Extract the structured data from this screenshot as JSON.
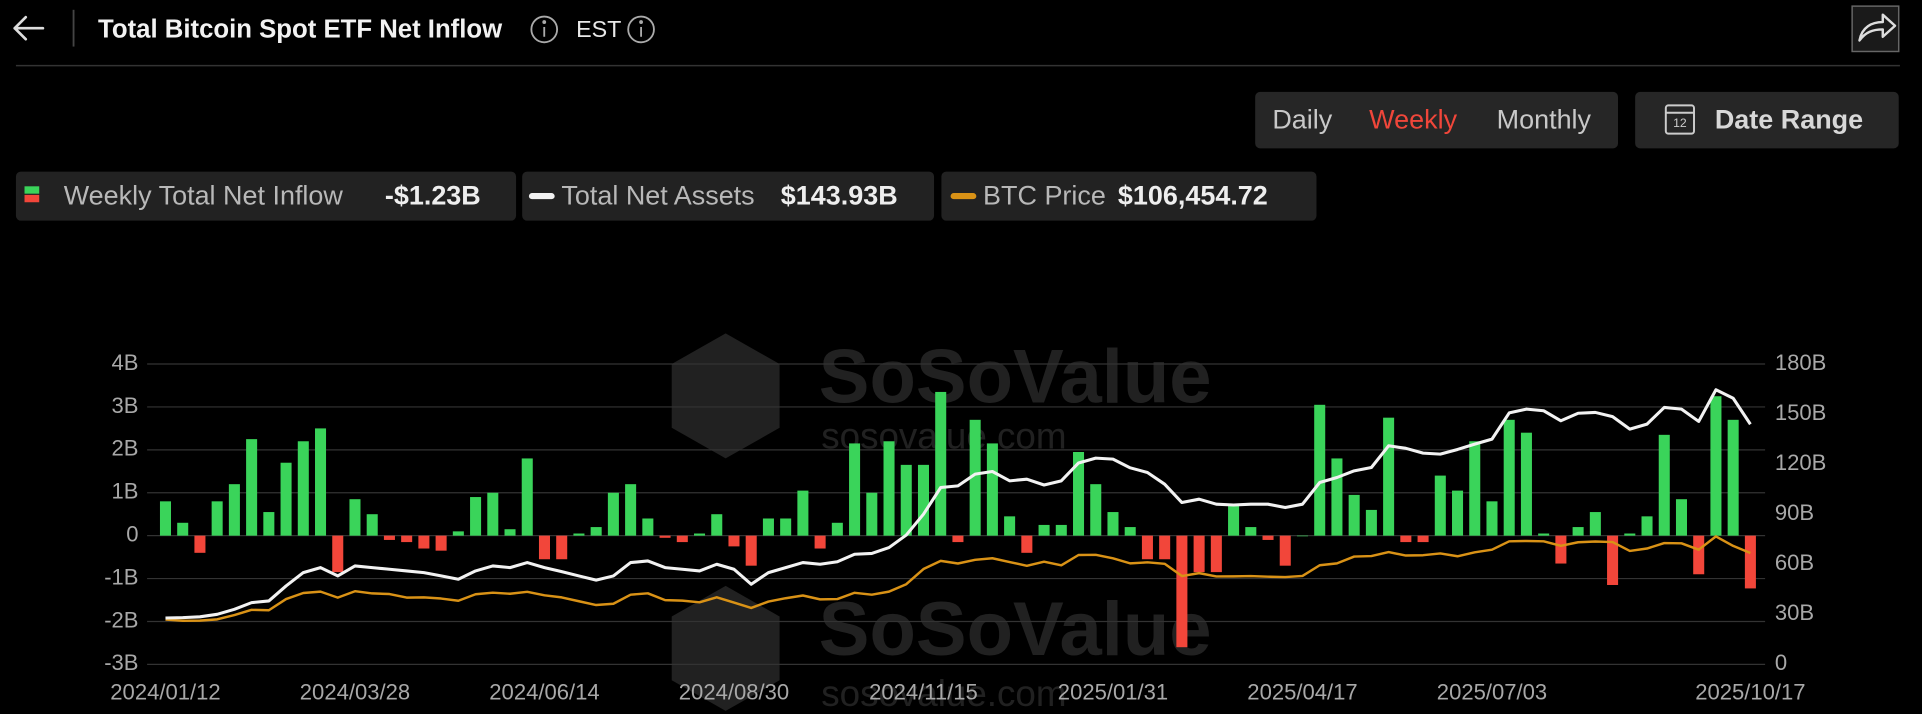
{
  "header": {
    "title": "Total Bitcoin Spot ETF Net Inflow",
    "timezone": "EST"
  },
  "controls": {
    "tabs": [
      "Daily",
      "Weekly",
      "Monthly"
    ],
    "active_tab": 1,
    "date_range": "Date Range",
    "calendar_day": "12"
  },
  "watermark": {
    "brand": "SoSoValue",
    "url": "sosovalue.com"
  },
  "chart_data": {
    "type": "bar",
    "categories": [
      "2024/01/12",
      null,
      null,
      null,
      null,
      null,
      null,
      null,
      null,
      null,
      null,
      "2024/03/28",
      null,
      null,
      null,
      null,
      null,
      null,
      null,
      null,
      null,
      null,
      "2024/06/14",
      null,
      null,
      null,
      null,
      null,
      null,
      null,
      null,
      null,
      null,
      "2024/08/30",
      null,
      null,
      null,
      null,
      null,
      null,
      null,
      null,
      null,
      null,
      "2024/11/15",
      null,
      null,
      null,
      null,
      null,
      null,
      null,
      null,
      null,
      null,
      "2025/01/31",
      null,
      null,
      null,
      null,
      null,
      null,
      null,
      null,
      null,
      null,
      "2025/04/17",
      null,
      null,
      null,
      null,
      null,
      null,
      null,
      null,
      null,
      null,
      "2025/07/03",
      null,
      null,
      null,
      null,
      null,
      null,
      null,
      null,
      null,
      null,
      null,
      null,
      null,
      null,
      "2025/10/17"
    ],
    "series": [
      {
        "name": "Weekly Total Net Inflow",
        "type": "bar",
        "axis": "y",
        "color": "#3ad45a",
        "negative_color": "#f2463a",
        "latest_label": "-$1.23B",
        "values": [
          0.8,
          0.3,
          -0.4,
          0.8,
          1.2,
          2.25,
          0.55,
          1.7,
          2.2,
          2.5,
          -0.85,
          0.85,
          0.5,
          -0.1,
          -0.15,
          -0.3,
          -0.35,
          0.1,
          0.9,
          1.0,
          0.15,
          1.8,
          -0.55,
          -0.55,
          0.05,
          0.2,
          1.0,
          1.2,
          0.4,
          -0.05,
          -0.15,
          0.05,
          0.5,
          -0.25,
          -0.7,
          0.4,
          0.4,
          1.05,
          -0.3,
          0.3,
          2.15,
          1.0,
          2.2,
          1.65,
          1.65,
          3.35,
          -0.15,
          2.7,
          2.15,
          0.45,
          -0.4,
          0.25,
          0.25,
          1.95,
          1.2,
          0.55,
          0.2,
          -0.55,
          -0.55,
          -2.6,
          -0.85,
          -0.85,
          0.7,
          0.2,
          -0.1,
          -0.7,
          0.0,
          3.05,
          1.8,
          0.95,
          0.6,
          2.75,
          -0.15,
          -0.15,
          1.4,
          1.05,
          2.2,
          0.8,
          2.7,
          2.4,
          0.05,
          -0.65,
          0.2,
          0.55,
          -1.15,
          0.05,
          0.45,
          2.35,
          0.85,
          -0.9,
          3.25,
          2.7,
          -1.23
        ]
      },
      {
        "name": "Total Net Assets",
        "type": "line",
        "axis": "y2",
        "color": "#f2f2f2",
        "latest_label": "$143.93B",
        "values": [
          27.8,
          28,
          28.5,
          30,
          33,
          37,
          38,
          47,
          55,
          58,
          53,
          59,
          58,
          57,
          56,
          55,
          53,
          51,
          56,
          59,
          58,
          61,
          58,
          55.6,
          53,
          50.5,
          53,
          61,
          62,
          58,
          57,
          56,
          60,
          57,
          48,
          55,
          58,
          61,
          60,
          61.5,
          66,
          66.5,
          70,
          77.5,
          90,
          106,
          107,
          114,
          115.6,
          110,
          111,
          107.5,
          110,
          120.7,
          123.6,
          123,
          117.8,
          115,
          108,
          97,
          99,
          96,
          95.5,
          96,
          96,
          94,
          96,
          109,
          112,
          116,
          118,
          131,
          129.5,
          126.6,
          126,
          128.8,
          132,
          135,
          150.7,
          153,
          152,
          146,
          150.5,
          151,
          148.5,
          141,
          144,
          154,
          153,
          145.6,
          164.6,
          159.5,
          143.93
        ]
      },
      {
        "name": "BTC Price",
        "type": "line",
        "axis": "y3",
        "color": "#d99216",
        "latest_label": "$106,454.72",
        "values": [
          42800,
          41700,
          41800,
          43000,
          47100,
          52100,
          51700,
          62400,
          68200,
          69500,
          63800,
          69900,
          67800,
          67200,
          63800,
          64000,
          62900,
          60800,
          67000,
          68500,
          67500,
          69300,
          66000,
          64000,
          60300,
          56700,
          57900,
          66600,
          67900,
          61400,
          60900,
          59300,
          64100,
          59100,
          53900,
          60000,
          63200,
          65800,
          62100,
          62400,
          68400,
          66600,
          69500,
          76600,
          91100,
          98900,
          96400,
          99900,
          101400,
          97800,
          94200,
          98100,
          94700,
          104500,
          104700,
          101300,
          96500,
          97500,
          96100,
          84400,
          87200,
          84000,
          84100,
          84400,
          83800,
          83400,
          84500,
          94700,
          96500,
          103000,
          103500,
          107300,
          104000,
          104300,
          106000,
          103300,
          107100,
          109600,
          117600,
          117900,
          117600,
          113300,
          116700,
          117400,
          116900,
          108400,
          110700,
          115900,
          115700,
          109600,
          122300,
          113200,
          106454.72
        ]
      }
    ],
    "ylim": [
      -3,
      4
    ],
    "yticks": [
      {
        "value": -3,
        "label": "-3B"
      },
      {
        "value": -2,
        "label": "-2B"
      },
      {
        "value": -1,
        "label": "-1B"
      },
      0,
      {
        "value": 1,
        "label": "1B"
      },
      {
        "value": 2,
        "label": "2B"
      },
      {
        "value": 3,
        "label": "3B"
      },
      {
        "value": 4,
        "label": "4B"
      }
    ],
    "y2lim": [
      0,
      180
    ],
    "y2ticks": [
      0,
      {
        "value": 30,
        "label": "30B"
      },
      {
        "value": 60,
        "label": "60B"
      },
      {
        "value": 90,
        "label": "90B"
      },
      {
        "value": 120,
        "label": "120B"
      },
      {
        "value": 150,
        "label": "150B"
      },
      {
        "value": 180,
        "label": "180B"
      }
    ],
    "y3lim": [
      0,
      287000
    ],
    "grid": true
  }
}
